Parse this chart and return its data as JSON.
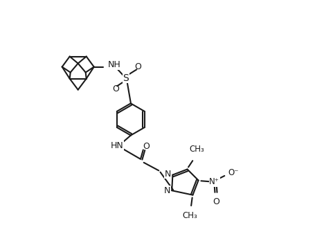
{
  "background_color": "#ffffff",
  "line_color": "#1a1a1a",
  "line_width": 1.5,
  "font_size": 9,
  "figsize": [
    4.55,
    3.64
  ],
  "dpi": 100,
  "xlim": [
    0,
    9.1
  ],
  "ylim": [
    0,
    7.28
  ]
}
